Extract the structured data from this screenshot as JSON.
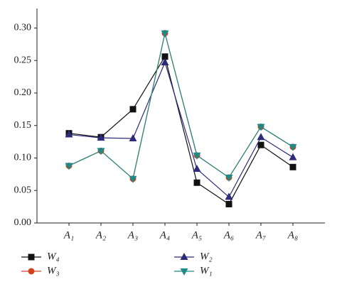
{
  "chart_data": {
    "type": "line",
    "categories": [
      "A₁",
      "A₂",
      "A₃",
      "A₄",
      "A₅",
      "A₆",
      "A₇",
      "A₈"
    ],
    "series": [
      {
        "name": "W₄",
        "color": "#111111",
        "marker": "square",
        "values": [
          0.138,
          0.132,
          0.175,
          0.256,
          0.062,
          0.029,
          0.12,
          0.086
        ]
      },
      {
        "name": "W₃",
        "color": "#d2401c",
        "marker": "circle",
        "values": [
          0.088,
          0.111,
          0.068,
          0.292,
          0.104,
          0.07,
          0.148,
          0.117
        ]
      },
      {
        "name": "W₂",
        "color": "#2e2b7a",
        "marker": "triangle-up",
        "values": [
          0.136,
          0.131,
          0.13,
          0.247,
          0.083,
          0.04,
          0.132,
          0.101
        ]
      },
      {
        "name": "W₁",
        "color": "#1f8a85",
        "marker": "triangle-down",
        "values": [
          0.088,
          0.111,
          0.068,
          0.292,
          0.104,
          0.07,
          0.148,
          0.117
        ]
      }
    ],
    "ylim": [
      0,
      0.33
    ],
    "yticks": [
      {
        "value": 0,
        "label": "0.00"
      },
      {
        "value": 0.05,
        "label": "0.05"
      },
      {
        "value": 0.1,
        "label": "0.10"
      },
      {
        "value": 0.15,
        "label": "0.15"
      },
      {
        "value": 0.2,
        "label": "0.20"
      },
      {
        "value": 0.25,
        "label": "0.25"
      },
      {
        "value": 0.3,
        "label": "0.30"
      }
    ]
  }
}
